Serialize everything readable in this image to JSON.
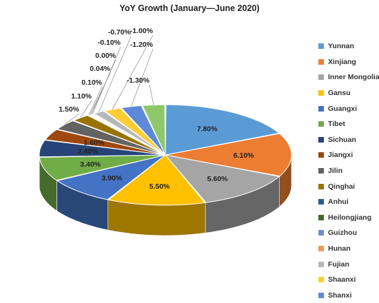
{
  "chart_data": {
    "type": "pie",
    "title": "YoY Growth (January—June 2020)",
    "style": "3d-pie",
    "legend_position": "right",
    "categories": [
      "Yunnan",
      "Xinjiang",
      "Inner Mongolia",
      "Gansu",
      "Guangxi",
      "Tibet",
      "Sichuan",
      "Jiangxi",
      "Jilin",
      "Qinghai",
      "Anhui",
      "Heilongjiang",
      "Guizhou",
      "Hunan",
      "Fujian",
      "Shaanxi",
      "Shanxi"
    ],
    "values": [
      7.8,
      6.1,
      5.6,
      5.5,
      3.9,
      3.4,
      2.4,
      1.6,
      1.5,
      1.1,
      0.1,
      0.04,
      0.0,
      -0.1,
      -0.7,
      -1.0,
      -1.2
    ],
    "data_labels": [
      "7.80%",
      "6.10%",
      "5.60%",
      "5.50%",
      "3.90%",
      "3.40%",
      "2.40%",
      "1.60%",
      "1.50%",
      "1.10%",
      "0.10%",
      "0.04%",
      "0.00%",
      "-0.10%",
      "-0.70%",
      "-1.00%",
      "-1.20%"
    ],
    "extra_data_label": "-1.30%",
    "colors": [
      "#5b9bd5",
      "#ed7d31",
      "#a5a5a5",
      "#ffc000",
      "#4472c4",
      "#70ad47",
      "#264478",
      "#9e480e",
      "#636363",
      "#997300",
      "#255e91",
      "#43682b",
      "#698ed0",
      "#f1975a",
      "#b7b7b7",
      "#ffcd33",
      "#5e89d8",
      "#8fc86a"
    ]
  }
}
